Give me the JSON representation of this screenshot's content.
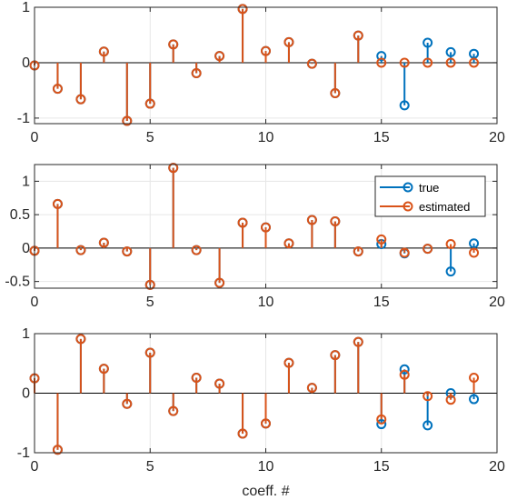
{
  "chart_data": [
    {
      "type": "stem",
      "xlim": [
        0,
        20
      ],
      "ylim": [
        -1.1,
        1.0
      ],
      "xticks": [
        0,
        5,
        10,
        15,
        20
      ],
      "yticks": [
        -1,
        0,
        1
      ],
      "xtick_labels": [
        "0",
        "5",
        "10",
        "15",
        "20"
      ],
      "ytick_labels": [
        "-1",
        "0",
        "1"
      ],
      "grid": true,
      "x": [
        0,
        1,
        2,
        3,
        4,
        5,
        6,
        7,
        8,
        9,
        10,
        11,
        12,
        13,
        14,
        15,
        16,
        17,
        18,
        19
      ],
      "series": [
        {
          "key": "true",
          "color": "#0072BD",
          "values": [
            -0.05,
            -0.47,
            -0.66,
            0.2,
            -1.05,
            -0.74,
            0.33,
            -0.19,
            0.12,
            0.97,
            0.21,
            0.37,
            -0.02,
            -0.55,
            0.49,
            0.12,
            -0.77,
            0.36,
            0.19,
            0.16
          ]
        },
        {
          "key": "estimated",
          "color": "#D95319",
          "values": [
            -0.05,
            -0.47,
            -0.66,
            0.2,
            -1.05,
            -0.74,
            0.33,
            -0.19,
            0.12,
            0.97,
            0.21,
            0.37,
            -0.02,
            -0.55,
            0.49,
            0.0,
            0.0,
            0.0,
            0.0,
            0.0
          ]
        }
      ]
    },
    {
      "type": "stem",
      "xlim": [
        0,
        20
      ],
      "ylim": [
        -0.6,
        1.25
      ],
      "xticks": [
        0,
        5,
        10,
        15,
        20
      ],
      "yticks": [
        -0.5,
        0,
        0.5,
        1
      ],
      "xtick_labels": [
        "0",
        "5",
        "10",
        "15",
        "20"
      ],
      "ytick_labels": [
        "-0.5",
        "0",
        "0.5",
        "1"
      ],
      "grid": true,
      "legend": {
        "placement": "top-right",
        "entries": [
          "true",
          "estimated"
        ]
      },
      "x": [
        0,
        1,
        2,
        3,
        4,
        5,
        6,
        7,
        8,
        9,
        10,
        11,
        12,
        13,
        14,
        15,
        16,
        17,
        18,
        19
      ],
      "series": [
        {
          "key": "true",
          "color": "#0072BD",
          "values": [
            -0.04,
            0.66,
            -0.03,
            0.08,
            -0.05,
            -0.55,
            1.2,
            -0.03,
            -0.52,
            0.38,
            0.31,
            0.07,
            0.42,
            0.4,
            -0.05,
            0.06,
            -0.08,
            -0.01,
            -0.35,
            0.07
          ]
        },
        {
          "key": "estimated",
          "color": "#D95319",
          "values": [
            -0.04,
            0.66,
            -0.03,
            0.08,
            -0.05,
            -0.55,
            1.2,
            -0.03,
            -0.52,
            0.38,
            0.31,
            0.07,
            0.42,
            0.4,
            -0.05,
            0.13,
            -0.07,
            -0.01,
            0.06,
            -0.07
          ]
        }
      ]
    },
    {
      "type": "stem",
      "xlim": [
        0,
        20
      ],
      "ylim": [
        -1.0,
        1.0
      ],
      "xticks": [
        0,
        5,
        10,
        15,
        20
      ],
      "yticks": [
        -1,
        0,
        1
      ],
      "xtick_labels": [
        "0",
        "5",
        "10",
        "15",
        "20"
      ],
      "ytick_labels": [
        "-1",
        "0",
        "1"
      ],
      "xlabel": "coeff. #",
      "grid": true,
      "x": [
        0,
        1,
        2,
        3,
        4,
        5,
        6,
        7,
        8,
        9,
        10,
        11,
        12,
        13,
        14,
        15,
        16,
        17,
        18,
        19
      ],
      "series": [
        {
          "key": "true",
          "color": "#0072BD",
          "values": [
            0.25,
            -0.95,
            0.91,
            0.41,
            -0.18,
            0.68,
            -0.3,
            0.26,
            0.16,
            -0.68,
            -0.51,
            0.51,
            0.09,
            0.64,
            0.86,
            -0.52,
            0.4,
            -0.54,
            0.0,
            -0.1
          ]
        },
        {
          "key": "estimated",
          "color": "#D95319",
          "values": [
            0.25,
            -0.95,
            0.91,
            0.41,
            -0.18,
            0.68,
            -0.3,
            0.26,
            0.16,
            -0.68,
            -0.51,
            0.51,
            0.09,
            0.64,
            0.86,
            -0.44,
            0.31,
            -0.05,
            -0.11,
            0.26
          ]
        }
      ]
    }
  ]
}
